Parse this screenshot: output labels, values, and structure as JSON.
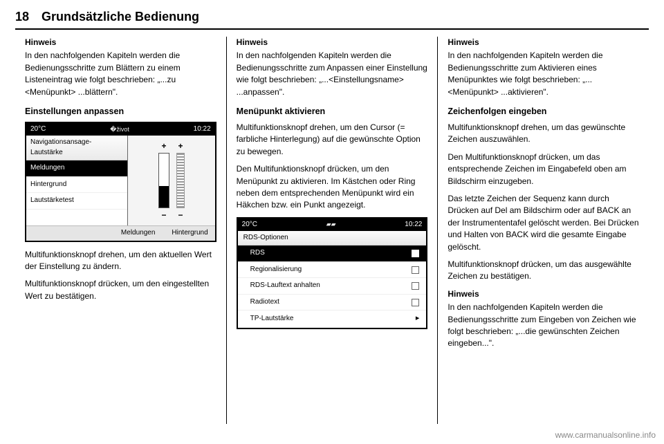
{
  "header": {
    "page_number": "18",
    "chapter_title": "Grundsätzliche Bedienung"
  },
  "col1": {
    "hinweis_label": "Hinweis",
    "hinweis_text": "In den nachfolgenden Kapiteln werden die Bedienungsschritte zum Blättern zu einem Listeneintrag wie folgt beschrieben: „...zu <Menüpunkt> ...blättern\".",
    "section_title": "Einstellungen anpassen",
    "screenshot1": {
      "temp": "20°C",
      "time": "10:22",
      "menu_title": "Navigationsansage-Lautstärke",
      "items": [
        "Meldungen",
        "Hintergrund",
        "Lautstärketest"
      ],
      "selected_index": 0,
      "footer_labels": [
        "Meldungen",
        "Hintergrund"
      ]
    },
    "body1": "Multifunktionsknopf drehen, um den aktuellen Wert der Einstellung zu ändern.",
    "body2": "Multifunktionsknopf drücken, um den eingestellten Wert zu bestätigen."
  },
  "col2": {
    "hinweis_label": "Hinweis",
    "hinweis_text": "In den nachfolgenden Kapiteln werden die Bedienungsschritte zum Anpassen einer Einstellung wie folgt beschrieben: „...<Einstellungsname> ...anpassen\".",
    "section_title": "Menüpunkt aktivieren",
    "body1": "Multifunktionsknopf drehen, um den Cursor (= farbliche Hinterlegung) auf die gewünschte Option zu bewegen.",
    "body2": "Den Multifunktionsknopf drücken, um den Menüpunkt zu aktivieren. Im Kästchen oder Ring neben dem entsprechenden Menüpunkt wird ein Häkchen bzw. ein Punkt angezeigt.",
    "screenshot2": {
      "temp": "20°C",
      "time": "10:22",
      "list_title": "RDS-Optionen",
      "rows": [
        {
          "label": "RDS",
          "type": "checkbox",
          "checked": true,
          "selected": true
        },
        {
          "label": "Regionalisierung",
          "type": "checkbox",
          "checked": false,
          "selected": false
        },
        {
          "label": "RDS-Lauftext anhalten",
          "type": "checkbox",
          "checked": false,
          "selected": false
        },
        {
          "label": "Radiotext",
          "type": "checkbox",
          "checked": false,
          "selected": false
        },
        {
          "label": "TP-Lautstärke",
          "type": "arrow",
          "selected": false
        }
      ]
    }
  },
  "col3": {
    "hinweis1_label": "Hinweis",
    "hinweis1_text": "In den nachfolgenden Kapiteln werden die Bedienungsschritte zum Aktivieren eines Menüpunktes wie folgt beschrieben: „...<Menüpunkt> ...aktivieren\".",
    "section_title": "Zeichenfolgen eingeben",
    "body1": "Multifunktionsknopf drehen, um das gewünschte Zeichen auszuwählen.",
    "body2": "Den Multifunktionsknopf drücken, um das entsprechende Zeichen im Eingabefeld oben am Bildschirm einzugeben.",
    "body3": "Das letzte Zeichen der Sequenz kann durch Drücken auf Del am Bildschirm oder auf BACK an der Instrumententafel gelöscht werden. Bei Drücken und Halten von BACK wird die gesamte Eingabe gelöscht.",
    "body4": "Multifunktionsknopf drücken, um das ausgewählte Zeichen zu bestätigen.",
    "hinweis2_label": "Hinweis",
    "hinweis2_text": "In den nachfolgenden Kapiteln werden die Bedienungsschritte zum Eingeben von Zeichen wie folgt beschrieben: „...die gewünschten Zeichen eingeben...\"."
  },
  "watermark": "www.carmanualsonline.info"
}
